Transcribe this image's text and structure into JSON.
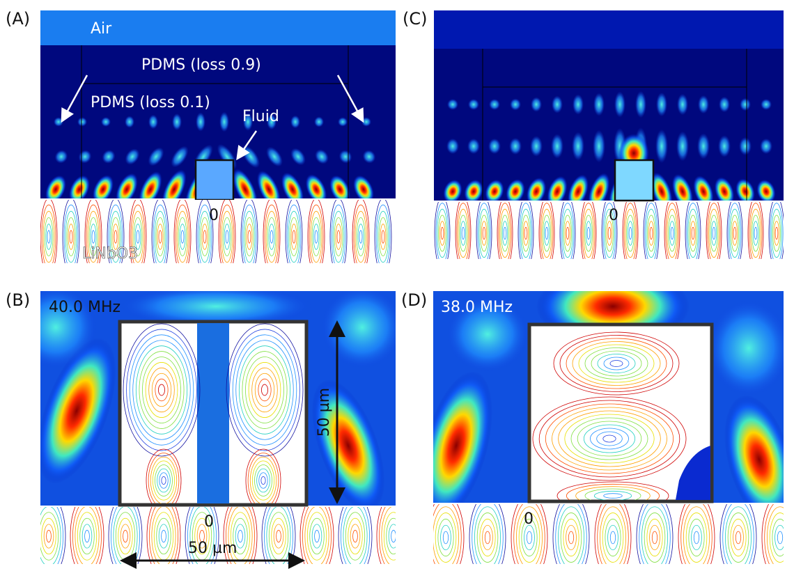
{
  "panels": {
    "A": {
      "label": "(A)",
      "air": "Air",
      "pdms_outer": "PDMS (loss 0.9)",
      "pdms_inner": "PDMS (loss 0.1)",
      "fluid": "Fluid",
      "origin": "0",
      "substrate": "LiNbO3"
    },
    "B": {
      "label": "(B)",
      "frequency": "40.0 MHz",
      "height": "50 µm",
      "origin": "0",
      "width": "50 µm"
    },
    "C": {
      "label": "(C)",
      "origin": "0"
    },
    "D": {
      "label": "(D)",
      "frequency": "38.0 MHz",
      "origin": "0"
    }
  }
}
